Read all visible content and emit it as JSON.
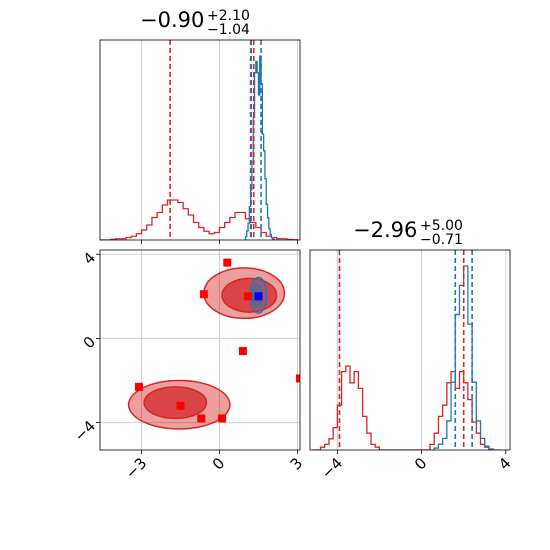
{
  "titles": {
    "p1": {
      "value": "−0.90",
      "plus": "+2.10",
      "minus": "−1.04"
    },
    "p2": {
      "value": "−2.96",
      "plus": "+5.00",
      "minus": "−0.71"
    }
  },
  "colors": {
    "red": "#d62728",
    "blue": "#1f77b4",
    "marker_red": "#ff0000",
    "marker_blue": "#0000ff",
    "grid": "#cfcfcf"
  },
  "chart_data": [
    {
      "type": "histogram",
      "panel": "top-left",
      "title": "−0.90 +2.10 −1.04",
      "xlim": [
        -4.6,
        3.1
      ],
      "x_ticks": [
        -3,
        0,
        3
      ],
      "series": [
        {
          "color": "#d62728",
          "bins": [
            -4.6,
            -4.4,
            -4.2,
            -4.0,
            -3.8,
            -3.6,
            -3.4,
            -3.2,
            -3.0,
            -2.8,
            -2.6,
            -2.4,
            -2.2,
            -2.0,
            -1.8,
            -1.6,
            -1.4,
            -1.2,
            -1.0,
            -0.8,
            -0.6,
            -0.4,
            -0.2,
            0.0,
            0.2,
            0.4,
            0.6,
            0.8,
            1.0,
            1.2,
            1.4,
            1.6,
            1.8,
            2.0,
            2.2,
            2.4,
            2.6,
            2.8,
            3.0
          ],
          "counts": [
            0,
            0,
            0.5,
            1,
            1,
            2,
            3,
            5,
            8,
            12,
            18,
            22,
            28,
            32,
            32,
            30,
            25,
            20,
            14,
            10,
            7,
            5,
            6,
            10,
            14,
            18,
            22,
            22,
            17,
            14,
            10,
            6,
            3,
            2,
            1,
            1,
            0.5,
            0.2
          ]
        },
        {
          "color": "#1f77b4",
          "bins": [
            1.0,
            1.05,
            1.1,
            1.15,
            1.2,
            1.25,
            1.3,
            1.35,
            1.4,
            1.45,
            1.5,
            1.55,
            1.6,
            1.65,
            1.7,
            1.75,
            1.8,
            1.85,
            1.9,
            1.95,
            2.0,
            2.05,
            2.1,
            2.15
          ],
          "counts": [
            3,
            8,
            15,
            30,
            45,
            70,
            110,
            150,
            160,
            150,
            130,
            165,
            140,
            95,
            80,
            55,
            32,
            20,
            10,
            5,
            2,
            1,
            0
          ]
        }
      ],
      "vlines": [
        {
          "x": -1.9,
          "color": "#d62728",
          "style": "dashed"
        },
        {
          "x": 1.2,
          "color": "#d62728",
          "style": "dashed"
        },
        {
          "x": 1.22,
          "color": "#1f77b4",
          "style": "dashed"
        },
        {
          "x": 1.32,
          "color": "#d62728",
          "style": "dashed"
        },
        {
          "x": 1.6,
          "color": "#1f77b4",
          "style": "dashed"
        }
      ]
    },
    {
      "type": "scatter",
      "panel": "bottom-left",
      "xlim": [
        -4.6,
        3.1
      ],
      "ylim": [
        -5.3,
        4.2
      ],
      "x_ticks": [
        -3,
        0,
        3
      ],
      "y_ticks": [
        -4,
        0,
        4
      ],
      "points": [
        [
          0.3,
          3.6
        ],
        [
          -0.6,
          2.1
        ],
        [
          1.5,
          2.0
        ],
        [
          1.1,
          2.0
        ],
        [
          0.9,
          -0.6
        ],
        [
          -3.1,
          -2.3
        ],
        [
          -1.5,
          -3.2
        ],
        [
          -0.7,
          -3.8
        ],
        [
          0.1,
          -3.8
        ],
        [
          3.1,
          -1.9
        ]
      ],
      "point_color": "#ff0000",
      "best_point": [
        1.5,
        2.0
      ],
      "best_point_color": "#0000ff",
      "contours_red": [
        {
          "cx": 0.95,
          "cy": 2.15,
          "rx": 1.55,
          "ry": 1.2,
          "fill_alpha": 0.45
        },
        {
          "cx": 1.15,
          "cy": 2.05,
          "rx": 1.05,
          "ry": 0.8,
          "fill_alpha": 0.75
        },
        {
          "cx": -1.55,
          "cy": -3.15,
          "rx": 1.95,
          "ry": 1.15,
          "fill_alpha": 0.45
        },
        {
          "cx": -1.7,
          "cy": -3.05,
          "rx": 1.2,
          "ry": 0.75,
          "fill_alpha": 0.75
        }
      ],
      "contours_blue": [
        {
          "cx": 1.5,
          "cy": 2.05,
          "rx": 0.32,
          "ry": 0.85
        },
        {
          "cx": 1.45,
          "cy": 2.05,
          "rx": 0.18,
          "ry": 0.5
        }
      ]
    },
    {
      "type": "histogram",
      "panel": "bottom-right",
      "title": "−2.96 +5.00 −0.71",
      "xlim": [
        -5.3,
        4.2
      ],
      "x_ticks": [
        -4,
        0,
        4
      ],
      "series": [
        {
          "color": "#d62728",
          "bins": [
            -5.2,
            -5.0,
            -4.8,
            -4.6,
            -4.4,
            -4.2,
            -4.0,
            -3.8,
            -3.6,
            -3.4,
            -3.2,
            -3.0,
            -2.8,
            -2.6,
            -2.4,
            -2.2,
            -2.0,
            -1.8,
            -1.6,
            -1.4,
            -1.2,
            -1.0,
            -0.8,
            -0.6,
            -0.4,
            -0.2,
            0,
            0.2,
            0.4,
            0.6,
            0.8,
            1.0,
            1.2,
            1.4,
            1.6,
            1.8,
            2.0,
            2.2,
            2.4,
            2.6,
            2.8,
            3.0,
            3.2,
            3.4,
            3.6,
            3.8
          ],
          "counts": [
            0,
            0,
            0.5,
            1,
            2,
            4,
            8,
            14,
            15,
            12,
            14,
            11,
            6,
            3,
            1,
            0.5,
            0,
            0,
            0,
            0,
            0,
            0,
            0,
            0,
            0,
            0,
            0,
            0,
            1,
            3,
            6,
            8,
            12,
            14,
            11,
            14,
            12,
            9,
            5,
            3,
            1,
            0.5,
            0,
            0,
            0
          ]
        },
        {
          "color": "#1f77b4",
          "bins": [
            0.6,
            0.8,
            1.0,
            1.2,
            1.4,
            1.6,
            1.8,
            2.0,
            2.2,
            2.4,
            2.6,
            2.8,
            3.0,
            3.2,
            3.4
          ],
          "counts": [
            1,
            3,
            6,
            15,
            35,
            70,
            85,
            95,
            65,
            35,
            15,
            6,
            2,
            0.5
          ]
        }
      ],
      "vlines": [
        {
          "x": -3.9,
          "color": "#d62728",
          "style": "dashed"
        },
        {
          "x": 1.6,
          "color": "#1f77b4",
          "style": "dashed"
        },
        {
          "x": 2.0,
          "color": "#d62728",
          "style": "dashed"
        },
        {
          "x": 2.4,
          "color": "#1f77b4",
          "style": "dashed"
        }
      ]
    }
  ]
}
